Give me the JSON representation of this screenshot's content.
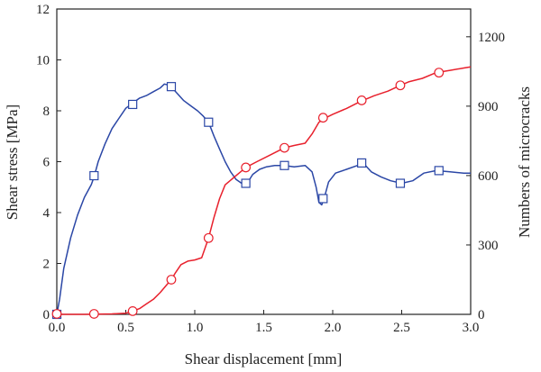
{
  "chart_data": {
    "type": "line",
    "xlabel": "Shear displacement [mm]",
    "ylabel_left": "Shear stress [MPa]",
    "ylabel_right": "Numbers of microcracks",
    "xlim": [
      0,
      3.0
    ],
    "ylim_left": [
      0,
      12
    ],
    "ylim_right": [
      0,
      1320
    ],
    "x_ticks": [
      "0.0",
      "0.5",
      "1.0",
      "1.5",
      "2.0",
      "2.5",
      "3.0"
    ],
    "x_tick_values": [
      0,
      0.5,
      1.0,
      1.5,
      2.0,
      2.5,
      3.0
    ],
    "y_left_ticks": [
      "0",
      "2",
      "4",
      "6",
      "8",
      "10",
      "12"
    ],
    "y_left_tick_values": [
      0,
      2,
      4,
      6,
      8,
      10,
      12
    ],
    "y_right_ticks": [
      "0",
      "300",
      "600",
      "900",
      "1200"
    ],
    "y_right_tick_values": [
      0,
      300,
      600,
      900,
      1200
    ],
    "grid": false,
    "series": [
      {
        "axis": "left",
        "color": "#2b47a6",
        "marker": "square",
        "points": [
          [
            0.0,
            0.0
          ],
          [
            0.02,
            0.6
          ],
          [
            0.05,
            1.8
          ],
          [
            0.1,
            3.0
          ],
          [
            0.15,
            3.9
          ],
          [
            0.2,
            4.6
          ],
          [
            0.25,
            5.1
          ],
          [
            0.27,
            5.4
          ],
          [
            0.3,
            6.0
          ],
          [
            0.35,
            6.7
          ],
          [
            0.4,
            7.3
          ],
          [
            0.45,
            7.7
          ],
          [
            0.5,
            8.1
          ],
          [
            0.55,
            8.3
          ],
          [
            0.6,
            8.5
          ],
          [
            0.65,
            8.6
          ],
          [
            0.7,
            8.75
          ],
          [
            0.75,
            8.9
          ],
          [
            0.78,
            9.05
          ],
          [
            0.82,
            9.0
          ],
          [
            0.87,
            8.7
          ],
          [
            0.92,
            8.4
          ],
          [
            0.97,
            8.2
          ],
          [
            1.02,
            8.0
          ],
          [
            1.06,
            7.8
          ],
          [
            1.1,
            7.55
          ],
          [
            1.14,
            7.0
          ],
          [
            1.18,
            6.5
          ],
          [
            1.22,
            6.0
          ],
          [
            1.26,
            5.6
          ],
          [
            1.3,
            5.3
          ],
          [
            1.34,
            5.15
          ],
          [
            1.38,
            5.15
          ],
          [
            1.42,
            5.5
          ],
          [
            1.47,
            5.7
          ],
          [
            1.52,
            5.8
          ],
          [
            1.58,
            5.85
          ],
          [
            1.65,
            5.85
          ],
          [
            1.72,
            5.8
          ],
          [
            1.8,
            5.85
          ],
          [
            1.85,
            5.6
          ],
          [
            1.88,
            5.0
          ],
          [
            1.9,
            4.4
          ],
          [
            1.92,
            4.3
          ],
          [
            1.94,
            4.6
          ],
          [
            1.97,
            5.2
          ],
          [
            2.02,
            5.55
          ],
          [
            2.1,
            5.7
          ],
          [
            2.18,
            5.85
          ],
          [
            2.22,
            5.95
          ],
          [
            2.28,
            5.6
          ],
          [
            2.35,
            5.4
          ],
          [
            2.42,
            5.25
          ],
          [
            2.5,
            5.15
          ],
          [
            2.58,
            5.25
          ],
          [
            2.66,
            5.55
          ],
          [
            2.75,
            5.65
          ],
          [
            2.85,
            5.6
          ],
          [
            2.95,
            5.55
          ],
          [
            3.0,
            5.55
          ]
        ],
        "marker_points": [
          [
            0.0,
            0.0
          ],
          [
            0.27,
            5.45
          ],
          [
            0.55,
            8.25
          ],
          [
            0.83,
            8.95
          ],
          [
            1.1,
            7.55
          ],
          [
            1.37,
            5.15
          ],
          [
            1.65,
            5.85
          ],
          [
            1.93,
            4.55
          ],
          [
            2.21,
            5.95
          ],
          [
            2.49,
            5.15
          ],
          [
            2.77,
            5.65
          ]
        ]
      },
      {
        "axis": "right",
        "color": "#e8212d",
        "marker": "circle",
        "points": [
          [
            0.0,
            0
          ],
          [
            0.2,
            0
          ],
          [
            0.4,
            2
          ],
          [
            0.5,
            5
          ],
          [
            0.55,
            14
          ],
          [
            0.6,
            25
          ],
          [
            0.65,
            45
          ],
          [
            0.7,
            65
          ],
          [
            0.75,
            95
          ],
          [
            0.8,
            130
          ],
          [
            0.83,
            150
          ],
          [
            0.86,
            180
          ],
          [
            0.9,
            215
          ],
          [
            0.95,
            230
          ],
          [
            1.0,
            235
          ],
          [
            1.05,
            245
          ],
          [
            1.1,
            330
          ],
          [
            1.14,
            420
          ],
          [
            1.18,
            500
          ],
          [
            1.22,
            560
          ],
          [
            1.28,
            590
          ],
          [
            1.32,
            610
          ],
          [
            1.37,
            635
          ],
          [
            1.45,
            660
          ],
          [
            1.55,
            690
          ],
          [
            1.65,
            720
          ],
          [
            1.72,
            730
          ],
          [
            1.8,
            740
          ],
          [
            1.85,
            780
          ],
          [
            1.9,
            830
          ],
          [
            1.95,
            850
          ],
          [
            2.0,
            865
          ],
          [
            2.1,
            890
          ],
          [
            2.2,
            920
          ],
          [
            2.3,
            945
          ],
          [
            2.4,
            965
          ],
          [
            2.49,
            990
          ],
          [
            2.55,
            1005
          ],
          [
            2.65,
            1020
          ],
          [
            2.75,
            1045
          ],
          [
            2.85,
            1055
          ],
          [
            2.95,
            1065
          ],
          [
            3.0,
            1070
          ]
        ],
        "marker_points": [
          [
            0.0,
            2
          ],
          [
            0.27,
            2
          ],
          [
            0.55,
            14
          ],
          [
            0.83,
            150
          ],
          [
            1.1,
            330
          ],
          [
            1.37,
            635
          ],
          [
            1.65,
            720
          ],
          [
            1.93,
            850
          ],
          [
            2.21,
            925
          ],
          [
            2.49,
            990
          ],
          [
            2.77,
            1045
          ]
        ]
      }
    ]
  }
}
